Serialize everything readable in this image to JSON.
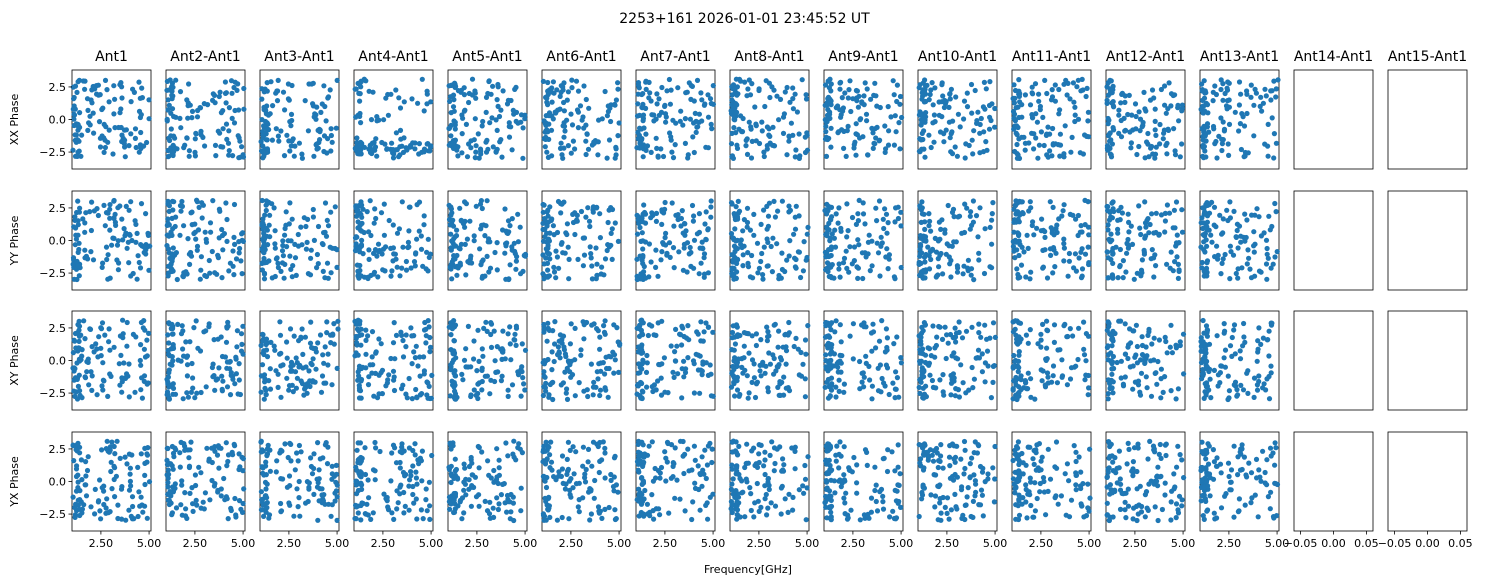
{
  "figure_title": "2253+161 2026-01-01 23:45:52 UT",
  "chart_data": {
    "type": "scatter",
    "layout": "grid",
    "columns": [
      "Ant1",
      "Ant2-Ant1",
      "Ant3-Ant1",
      "Ant4-Ant1",
      "Ant5-Ant1",
      "Ant6-Ant1",
      "Ant7-Ant1",
      "Ant8-Ant1",
      "Ant9-Ant1",
      "Ant10-Ant1",
      "Ant11-Ant1",
      "Ant12-Ant1",
      "Ant13-Ant1",
      "Ant14-Ant1",
      "Ant15-Ant1"
    ],
    "rows": [
      "XX Phase",
      "YY Phase",
      "XY Phase",
      "YX Phase"
    ],
    "xlabel": "Frequency[GHz]",
    "xlim": [
      1.0,
      5.1
    ],
    "ylim": [
      -3.8,
      3.8
    ],
    "yticks": [
      -2.5,
      0.0,
      2.5
    ],
    "ytick_labels": [
      "−2.5",
      "0.0",
      "2.5"
    ],
    "xticks": [
      2.5,
      5.0
    ],
    "xtick_labels": [
      "2.50",
      "5.00"
    ],
    "first_xticks": [
      2.5,
      5.0
    ],
    "first_xtick_labels": [
      "2.50",
      "5.00"
    ],
    "empty_xlim": [
      -0.06,
      0.06
    ],
    "empty_xticks": [
      -0.05,
      0.0,
      0.05
    ],
    "empty_xtick_labels": [
      "−0.05",
      "0.00",
      "0.05"
    ],
    "empty_columns": [
      13,
      14
    ],
    "points_per_panel": 120,
    "marker_color": "#1f77b4"
  }
}
